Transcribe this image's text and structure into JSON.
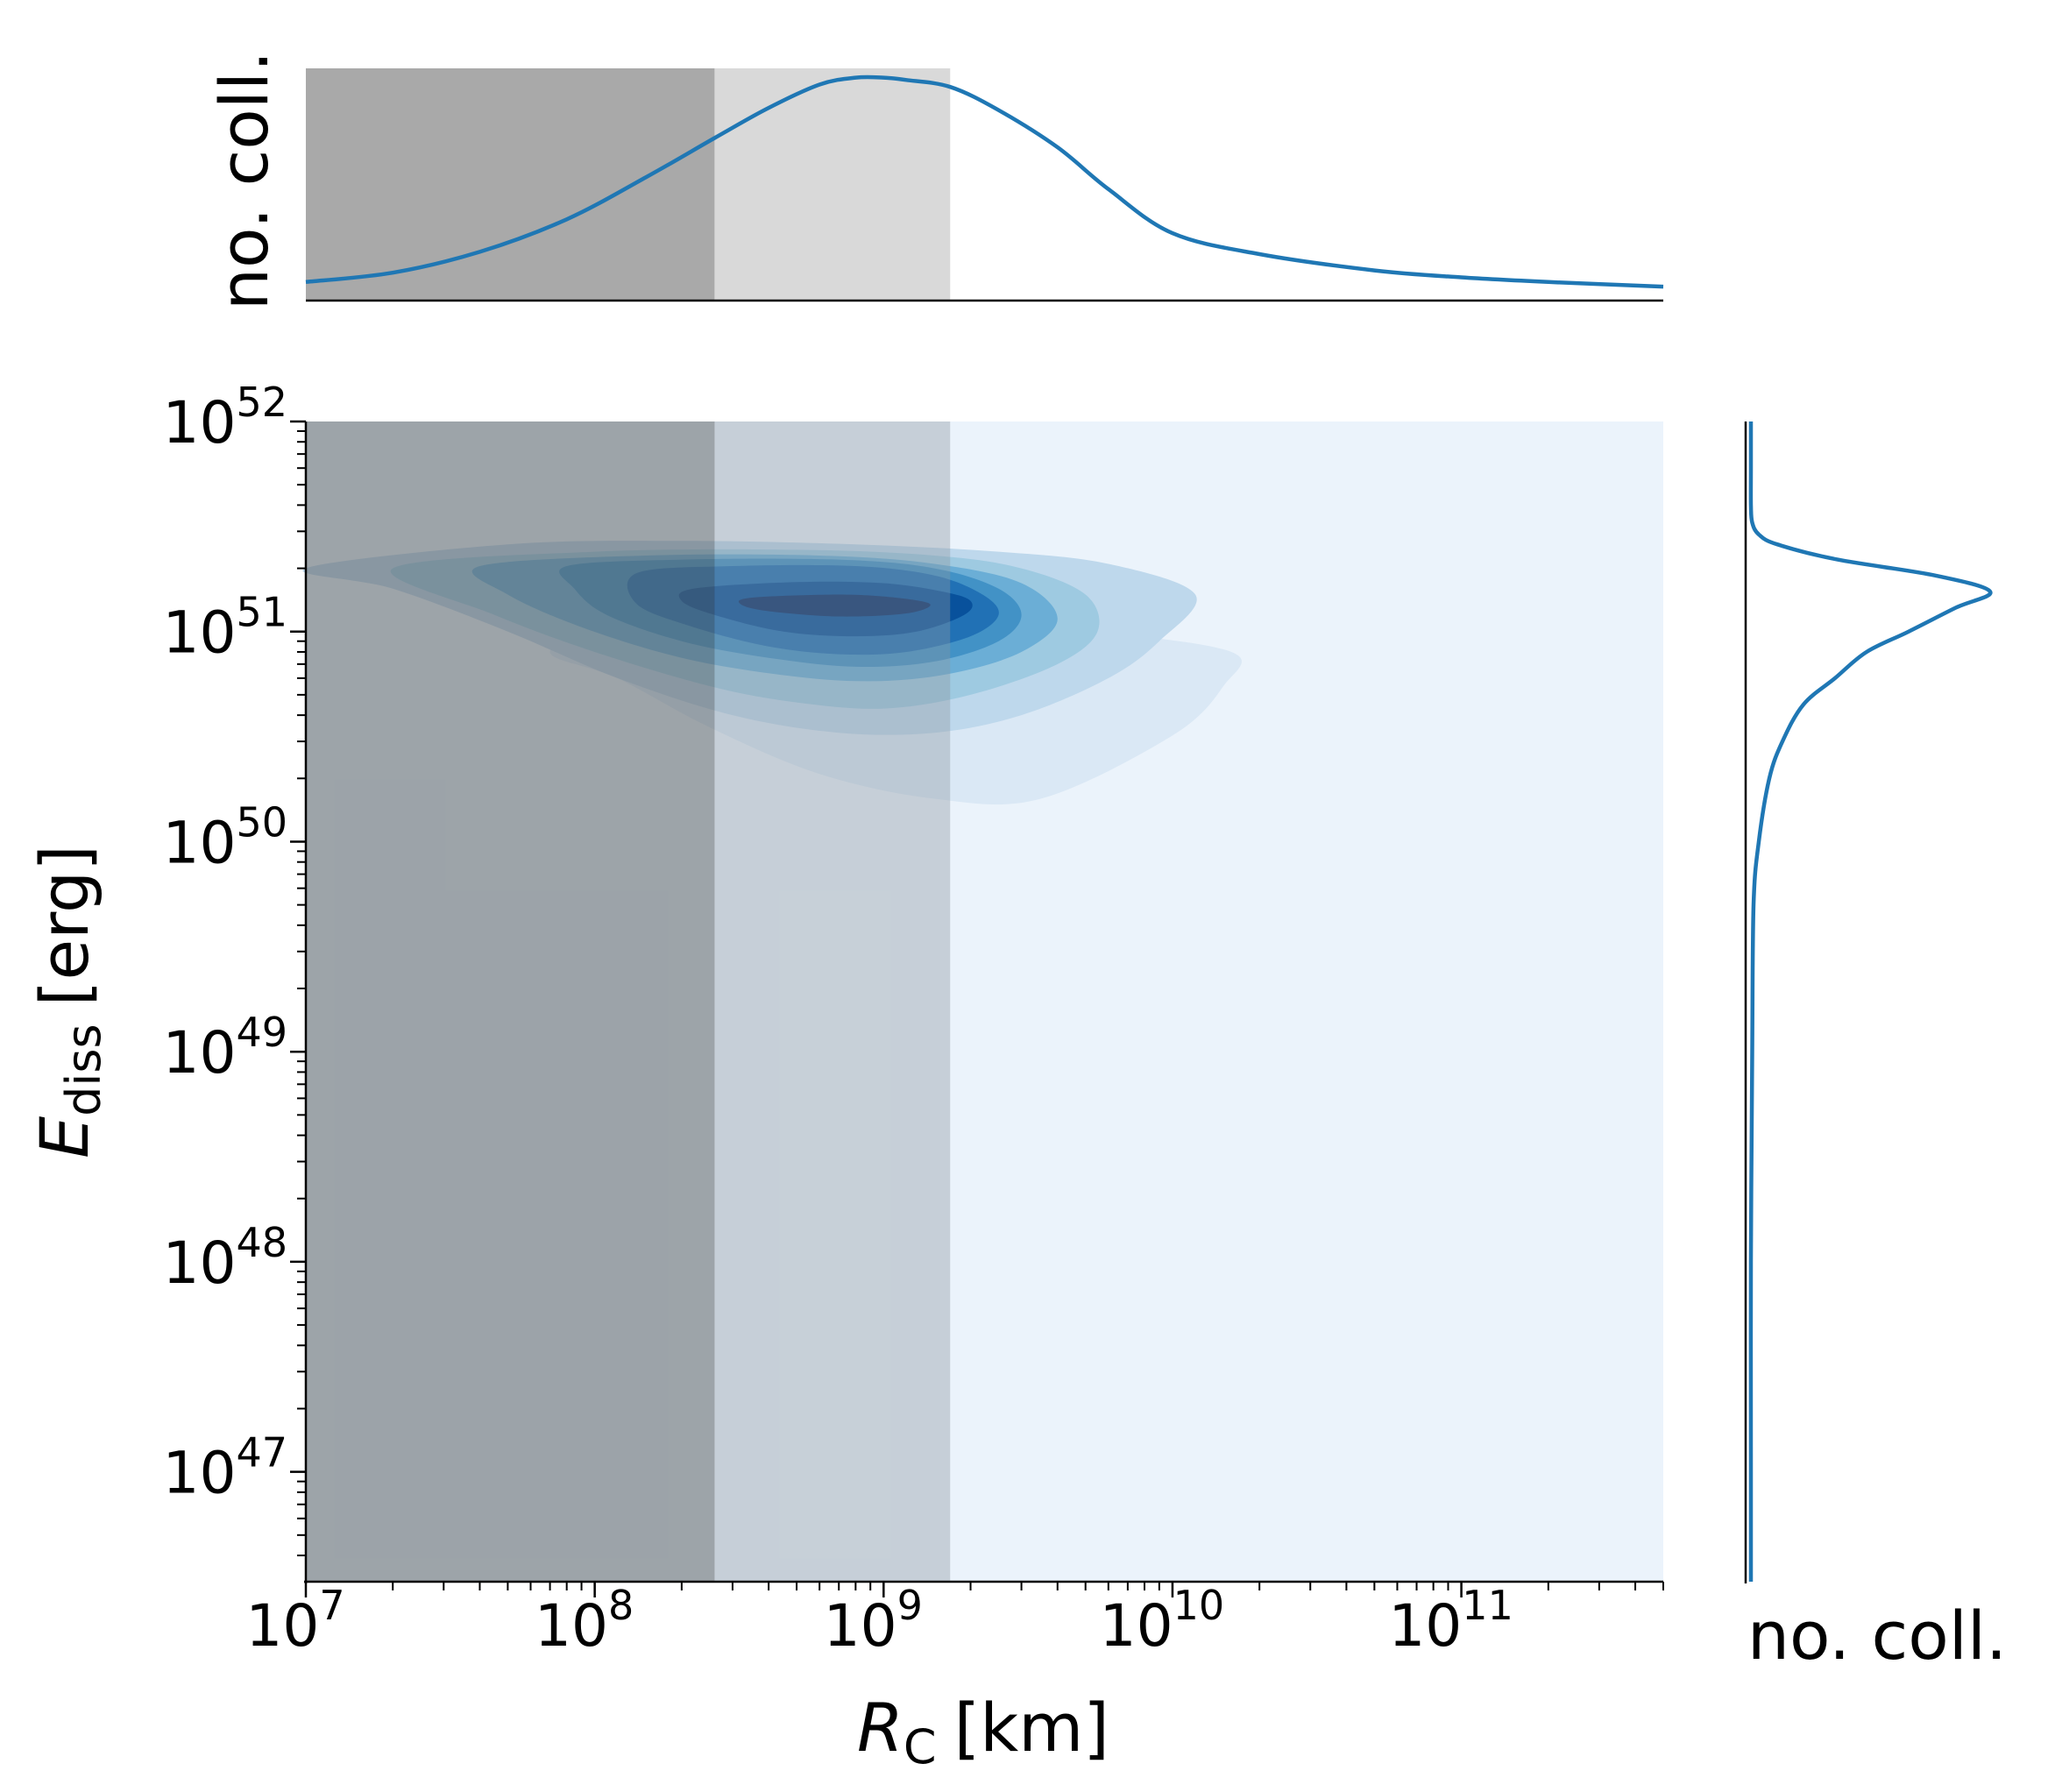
{
  "chart_data": [
    {
      "type": "area",
      "role": "top-marginal",
      "title": "",
      "xlabel": "",
      "ylabel": "no. coll.",
      "x_scale": "log",
      "xlim": [
        10000000.0,
        500000000000.0
      ],
      "ylim": [
        0,
        1
      ],
      "x": [
        10000000.0,
        20000000.0,
        40000000.0,
        80000000.0,
        150000000.0,
        260000000.0,
        400000000.0,
        600000000.0,
        800000000.0,
        1000000000.0,
        1200000000.0,
        1700000000.0,
        2500000000.0,
        4000000000.0,
        6000000000.0,
        10000000000.0,
        20000000000.0,
        50000000000.0,
        100000000000.0,
        200000000000.0,
        500000000000.0
      ],
      "values": [
        0.08,
        0.12,
        0.21,
        0.35,
        0.53,
        0.7,
        0.83,
        0.93,
        0.96,
        0.96,
        0.95,
        0.92,
        0.82,
        0.66,
        0.48,
        0.29,
        0.2,
        0.13,
        0.1,
        0.08,
        0.06
      ],
      "series_color": "#1f77b4",
      "shaded_regions": [
        {
          "x": [
            10000000.0,
            260000000.0
          ],
          "color": "#a9a9a9"
        },
        {
          "x": [
            260000000.0,
            1700000000.0
          ],
          "color": "#d9d9d9"
        }
      ]
    },
    {
      "type": "heatmap",
      "role": "main-kde-contours",
      "title": "",
      "xlabel_main": "R",
      "xlabel_sub": "C",
      "xlabel_unit": "[km]",
      "ylabel_main": "E",
      "ylabel_sub": "diss",
      "ylabel_unit": "[erg]",
      "x_scale": "log",
      "y_scale": "log",
      "xlim": [
        10000000.0,
        500000000000.0
      ],
      "ylim": [
        3e+46,
        1e+52
      ],
      "x_tick_exponents": [
        7,
        8,
        9,
        10,
        11
      ],
      "y_tick_exponents": [
        47,
        48,
        49,
        50,
        51,
        52
      ],
      "tick_base": "10",
      "background_color": "#ebf3fb",
      "shaded_regions": [
        {
          "x": [
            10000000.0,
            260000000.0
          ],
          "color": "#5c6266",
          "opacity": 0.55
        },
        {
          "x": [
            260000000.0,
            1700000000.0
          ],
          "color": "#8c96a0",
          "opacity": 0.38
        }
      ],
      "contour_levels": [
        {
          "level": 1,
          "color": "#dae8f5",
          "points": [
            [
              120000000.0,
              1.1e+51
            ],
            [
              300000000.0,
              1.2e+51
            ],
            [
              1000000000.0,
              1.1e+51
            ],
            [
              5000000000.0,
              1e+51
            ],
            [
              16000000000.0,
              8e+50
            ],
            [
              15000000000.0,
              5.5e+50
            ],
            [
              10000000000.0,
              3.2e+50
            ],
            [
              3500000000.0,
              1.6e+50
            ],
            [
              1500000000.0,
              1.6e+50
            ],
            [
              600000000.0,
              2.1e+50
            ],
            [
              250000000.0,
              3.5e+50
            ],
            [
              120000000.0,
              6e+50
            ],
            [
              70000000.0,
              8e+50
            ]
          ]
        },
        {
          "level": 2,
          "color": "#bed8ec",
          "points": [
            [
              10000000.0,
              2e+51
            ],
            [
              50000000.0,
              2.6e+51
            ],
            [
              200000000.0,
              2.7e+51
            ],
            [
              800000000.0,
              2.6e+51
            ],
            [
              2500000000.0,
              2.4e+51
            ],
            [
              6000000000.0,
              2.1e+51
            ],
            [
              12000000000.0,
              1.5e+51
            ],
            [
              9000000000.0,
              9e+50
            ],
            [
              6000000000.0,
              6e+50
            ],
            [
              3000000000.0,
              4e+50
            ],
            [
              1500000000.0,
              3.3e+50
            ],
            [
              700000000.0,
              3.3e+50
            ],
            [
              300000000.0,
              4e+50
            ],
            [
              120000000.0,
              6e+50
            ],
            [
              50000000.0,
              1e+51
            ],
            [
              20000000.0,
              1.6e+51
            ]
          ]
        },
        {
          "level": 3,
          "color": "#9ecae1",
          "points": [
            [
              20000000.0,
              2e+51
            ],
            [
              100000000.0,
              2.4e+51
            ],
            [
              500000000.0,
              2.45e+51
            ],
            [
              1500000000.0,
              2.3e+51
            ],
            [
              3000000000.0,
              2e+51
            ],
            [
              5000000000.0,
              1.5e+51
            ],
            [
              5500000000.0,
              1e+51
            ],
            [
              4000000000.0,
              7e+50
            ],
            [
              2000000000.0,
              5e+50
            ],
            [
              1000000000.0,
              4.3e+50
            ],
            [
              500000000.0,
              4.6e+50
            ],
            [
              250000000.0,
              5.5e+50
            ],
            [
              100000000.0,
              8e+50
            ],
            [
              45000000.0,
              1.2e+51
            ]
          ]
        },
        {
          "level": 4,
          "color": "#6baed6",
          "points": [
            [
              40000000.0,
              2.05e+51
            ],
            [
              150000000.0,
              2.3e+51
            ],
            [
              600000000.0,
              2.3e+51
            ],
            [
              1500000000.0,
              2.1e+51
            ],
            [
              3000000000.0,
              1.7e+51
            ],
            [
              4000000000.0,
              1.15e+51
            ],
            [
              3000000000.0,
              8e+50
            ],
            [
              1700000000.0,
              6.3e+50
            ],
            [
              900000000.0,
              5.8e+50
            ],
            [
              450000000.0,
              6.2e+50
            ],
            [
              200000000.0,
              7.5e+50
            ],
            [
              90000000.0,
              1.05e+51
            ],
            [
              50000000.0,
              1.5e+51
            ]
          ]
        },
        {
          "level": 5,
          "color": "#4292c6",
          "points": [
            [
              80000000.0,
              2.05e+51
            ],
            [
              200000000.0,
              2.2e+51
            ],
            [
              700000000.0,
              2.2e+51
            ],
            [
              1500000000.0,
              2e+51
            ],
            [
              2500000000.0,
              1.6e+51
            ],
            [
              3000000000.0,
              1.2e+51
            ],
            [
              2500000000.0,
              9e+50
            ],
            [
              1500000000.0,
              7.2e+50
            ],
            [
              800000000.0,
              6.8e+50
            ],
            [
              400000000.0,
              7.5e+50
            ],
            [
              200000000.0,
              9e+50
            ],
            [
              110000000.0,
              1.2e+51
            ],
            [
              85000000.0,
              1.6e+51
            ]
          ]
        },
        {
          "level": 6,
          "color": "#2171b5",
          "points": [
            [
              140000000.0,
              1.9e+51
            ],
            [
              300000000.0,
              2.05e+51
            ],
            [
              800000000.0,
              2.05e+51
            ],
            [
              1500000000.0,
              1.85e+51
            ],
            [
              2200000000.0,
              1.5e+51
            ],
            [
              2500000000.0,
              1.2e+51
            ],
            [
              2000000000.0,
              9.5e+50
            ],
            [
              1200000000.0,
              8e+50
            ],
            [
              700000000.0,
              7.8e+50
            ],
            [
              400000000.0,
              8.5e+50
            ],
            [
              220000000.0,
              1.05e+51
            ],
            [
              140000000.0,
              1.35e+51
            ]
          ]
        },
        {
          "level": 7,
          "color": "#08519c",
          "points": [
            [
              220000000.0,
              1.6e+51
            ],
            [
              500000000.0,
              1.72e+51
            ],
            [
              1000000000.0,
              1.7e+51
            ],
            [
              1600000000.0,
              1.55e+51
            ],
            [
              2000000000.0,
              1.4e+51
            ],
            [
              1900000000.0,
              1.2e+51
            ],
            [
              1300000000.0,
              1e+51
            ],
            [
              800000000.0,
              9.5e+50
            ],
            [
              450000000.0,
              1e+51
            ],
            [
              260000000.0,
              1.2e+51
            ],
            [
              200000000.0,
              1.4e+51
            ]
          ]
        },
        {
          "level": 8,
          "color": "#08306b",
          "points": [
            [
              350000000.0,
              1.45e+51
            ],
            [
              700000000.0,
              1.5e+51
            ],
            [
              1100000000.0,
              1.45e+51
            ],
            [
              1450000000.0,
              1.35e+51
            ],
            [
              1200000000.0,
              1.22e+51
            ],
            [
              700000000.0,
              1.18e+51
            ],
            [
              400000000.0,
              1.25e+51
            ],
            [
              320000000.0,
              1.35e+51
            ]
          ]
        }
      ]
    },
    {
      "type": "line",
      "role": "right-marginal",
      "title": "",
      "xlabel": "no. coll.",
      "ylabel": "",
      "y_scale": "log",
      "ylim": [
        3e+46,
        1e+52
      ],
      "xlim": [
        0,
        1
      ],
      "y": [
        3e+46,
        1e+47,
        1e+48,
        1e+49,
        5e+49,
        1e+50,
        2e+50,
        3e+50,
        4.5e+50,
        6e+50,
        8e+50,
        1e+51,
        1.3e+51,
        1.55e+51,
        1.85e+51,
        2.2e+51,
        2.6e+51,
        2.9e+51,
        3.3e+51,
        4e+51,
        6e+51,
        1e+52
      ],
      "values": [
        0.02,
        0.02,
        0.02,
        0.025,
        0.03,
        0.05,
        0.09,
        0.14,
        0.22,
        0.34,
        0.46,
        0.62,
        0.8,
        0.93,
        0.72,
        0.35,
        0.12,
        0.05,
        0.025,
        0.02,
        0.02,
        0.02
      ],
      "series_color": "#1f77b4"
    }
  ]
}
